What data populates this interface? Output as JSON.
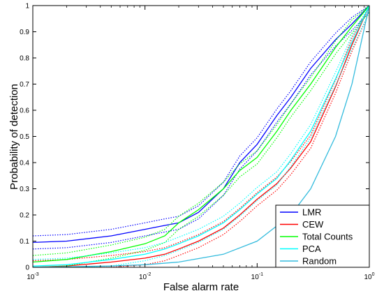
{
  "chart_data": {
    "type": "line",
    "title": "",
    "xlabel": "False alarm rate",
    "ylabel": "Probability of detection",
    "xscale": "log",
    "xlim": [
      0.001,
      1
    ],
    "ylim": [
      0,
      1
    ],
    "grid": false,
    "legend_position": "bottom-right",
    "x_ticks": [
      {
        "value": 0.001,
        "base": "10",
        "exp": "-3"
      },
      {
        "value": 0.01,
        "base": "10",
        "exp": "-2"
      },
      {
        "value": 0.1,
        "base": "10",
        "exp": "-1"
      },
      {
        "value": 1,
        "base": "10",
        "exp": "0"
      }
    ],
    "y_ticks": [
      {
        "value": 0,
        "label": "0"
      },
      {
        "value": 0.1,
        "label": "0.1"
      },
      {
        "value": 0.2,
        "label": "0.2"
      },
      {
        "value": 0.3,
        "label": "0.3"
      },
      {
        "value": 0.4,
        "label": "0.4"
      },
      {
        "value": 0.5,
        "label": "0.5"
      },
      {
        "value": 0.6,
        "label": "0.6"
      },
      {
        "value": 0.7,
        "label": "0.7"
      },
      {
        "value": 0.8,
        "label": "0.8"
      },
      {
        "value": 0.9,
        "label": "0.9"
      },
      {
        "value": 1,
        "label": "1"
      }
    ],
    "series": [
      {
        "name": "LMR",
        "color": "#0000ff",
        "band": true,
        "x": [
          0.001,
          0.002,
          0.005,
          0.01,
          0.015,
          0.02,
          0.03,
          0.05,
          0.07,
          0.1,
          0.15,
          0.2,
          0.3,
          0.5,
          0.7,
          1
        ],
        "y": [
          0.095,
          0.1,
          0.12,
          0.145,
          0.16,
          0.17,
          0.21,
          0.3,
          0.4,
          0.47,
          0.58,
          0.65,
          0.76,
          0.87,
          0.93,
          1
        ]
      },
      {
        "name": "CEW",
        "color": "#ff0000",
        "band": true,
        "x": [
          0.001,
          0.002,
          0.005,
          0.01,
          0.015,
          0.02,
          0.03,
          0.05,
          0.07,
          0.1,
          0.15,
          0.2,
          0.3,
          0.5,
          0.7,
          1
        ],
        "y": [
          0.0,
          0.005,
          0.02,
          0.035,
          0.05,
          0.07,
          0.1,
          0.15,
          0.2,
          0.26,
          0.32,
          0.38,
          0.48,
          0.69,
          0.85,
          1
        ]
      },
      {
        "name": "Total Counts",
        "color": "#00ff00",
        "band": true,
        "x": [
          0.001,
          0.002,
          0.005,
          0.01,
          0.015,
          0.02,
          0.03,
          0.05,
          0.07,
          0.1,
          0.15,
          0.2,
          0.3,
          0.5,
          0.7,
          1
        ],
        "y": [
          0.02,
          0.03,
          0.06,
          0.09,
          0.12,
          0.17,
          0.22,
          0.3,
          0.37,
          0.42,
          0.52,
          0.6,
          0.7,
          0.84,
          0.92,
          1
        ]
      },
      {
        "name": "PCA",
        "color": "#00ffff",
        "band": true,
        "x": [
          0.001,
          0.002,
          0.005,
          0.01,
          0.015,
          0.02,
          0.03,
          0.05,
          0.07,
          0.1,
          0.15,
          0.2,
          0.3,
          0.5,
          0.7,
          1
        ],
        "y": [
          0.005,
          0.01,
          0.03,
          0.05,
          0.07,
          0.09,
          0.12,
          0.17,
          0.22,
          0.28,
          0.34,
          0.41,
          0.52,
          0.72,
          0.86,
          1
        ]
      },
      {
        "name": "Random",
        "color": "#33bbdd",
        "band": false,
        "x": [
          0.001,
          0.002,
          0.005,
          0.01,
          0.02,
          0.05,
          0.1,
          0.2,
          0.3,
          0.5,
          0.7,
          1
        ],
        "y": [
          0.001,
          0.002,
          0.005,
          0.01,
          0.02,
          0.05,
          0.1,
          0.2,
          0.3,
          0.5,
          0.7,
          1
        ]
      }
    ]
  }
}
